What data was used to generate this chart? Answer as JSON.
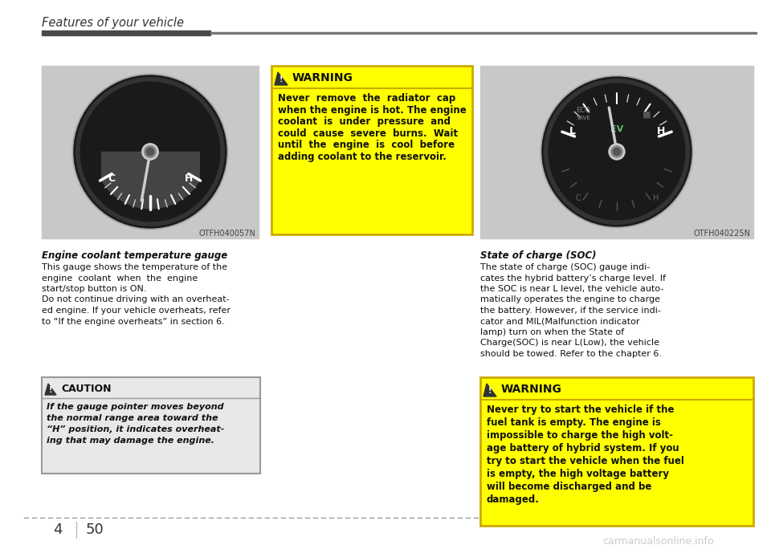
{
  "page_title": "Features of your vehicle",
  "page_number_section": "4",
  "page_number": "50",
  "bg_color": "#ffffff",
  "title_bar_dark": "#4a4a4a",
  "title_bar_light": "#777777",
  "title_fontsize": 10.5,
  "title_font_color": "#333333",
  "left_image_label": "OTFH040057N",
  "right_image_label": "OTFH040225N",
  "left_caption_bold": "Engine coolant temperature gauge",
  "left_caption_lines": [
    "This gauge shows the temperature of the",
    "engine  coolant  when  the  engine",
    "start/stop button is ON.",
    "Do not continue driving with an overheat-",
    "ed engine. If your vehicle overheats, refer",
    "to “If the engine overheats” in section 6."
  ],
  "caution_title": "CAUTION",
  "caution_lines": [
    "If the gauge pointer moves beyond",
    "the normal range area toward the",
    "“H” position, it indicates overheat-",
    "ing that may damage the engine."
  ],
  "warning_title_top": "WARNING",
  "warning_top_lines": [
    "Never  remove  the  radiator  cap",
    "when the engine is hot. The engine",
    "coolant  is  under  pressure  and",
    "could  cause  severe  burns.  Wait",
    "until  the  engine  is  cool  before",
    "adding coolant to the reservoir."
  ],
  "right_caption_bold": "State of charge (SOC)",
  "right_caption_lines": [
    "The state of charge (SOC) gauge indi-",
    "cates the hybrid battery’s charge level. If",
    "the SOC is near L level, the vehicle auto-",
    "matically operates the engine to charge",
    "the battery. However, if the service indi-",
    "cator and MIL(Malfunction indicator",
    "lamp) turn on when the State of",
    "Charge(SOC) is near L(Low), the vehicle",
    "should be towed. Refer to the chapter 6."
  ],
  "warning_title_bottom": "WARNING",
  "warning_bottom_lines": [
    "Never try to start the vehicle if the",
    "fuel tank is empty. The engine is",
    "impossible to charge the high volt-",
    "age battery of hybrid system. If you",
    "try to start the vehicle when the fuel",
    "is empty, the high voltage battery",
    "will become discharged and be",
    "damaged."
  ],
  "warning_bg": "#ffff00",
  "warning_border": "#ccaa00",
  "caution_bg": "#e8e8e8",
  "caution_border": "#999999",
  "dashed_line_color": "#999999",
  "watermark_text": "carmanualsonline.info",
  "watermark_color": "#cccccc"
}
